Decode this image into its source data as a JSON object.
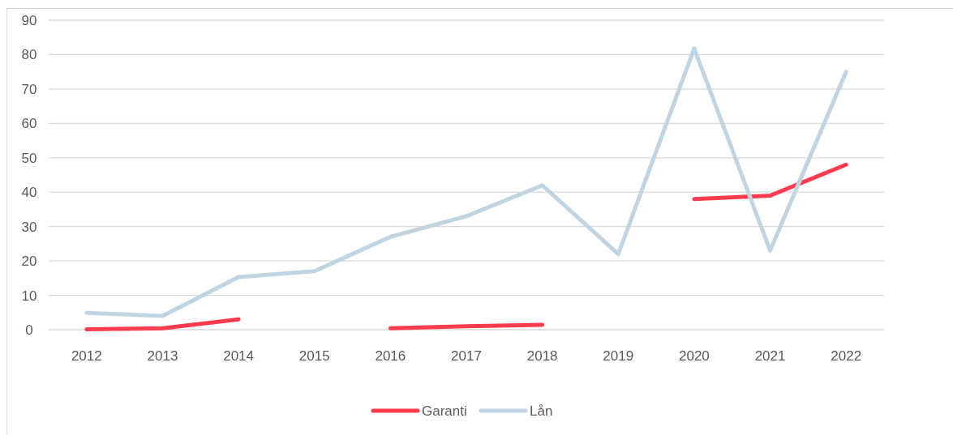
{
  "chart_data": {
    "type": "line",
    "categories": [
      "2012",
      "2013",
      "2014",
      "2015",
      "2016",
      "2017",
      "2018",
      "2019",
      "2020",
      "2021",
      "2022"
    ],
    "series": [
      {
        "name": "Garanti",
        "color": "#ff3b4e",
        "values": [
          0.1,
          0.4,
          3,
          null,
          0.4,
          1,
          1.4,
          null,
          38,
          39,
          48
        ]
      },
      {
        "name": "Lån",
        "color": "#c0d5e1",
        "values": [
          4.9,
          4,
          15.3,
          17,
          27,
          33,
          42,
          22,
          81.8,
          23,
          75
        ]
      }
    ],
    "ylim": [
      0,
      90
    ],
    "yticks": [
      0,
      10,
      20,
      30,
      40,
      50,
      60,
      70,
      80,
      90
    ],
    "grid": "y",
    "legend": "bottom",
    "marker": "none",
    "line_style": "solid"
  }
}
